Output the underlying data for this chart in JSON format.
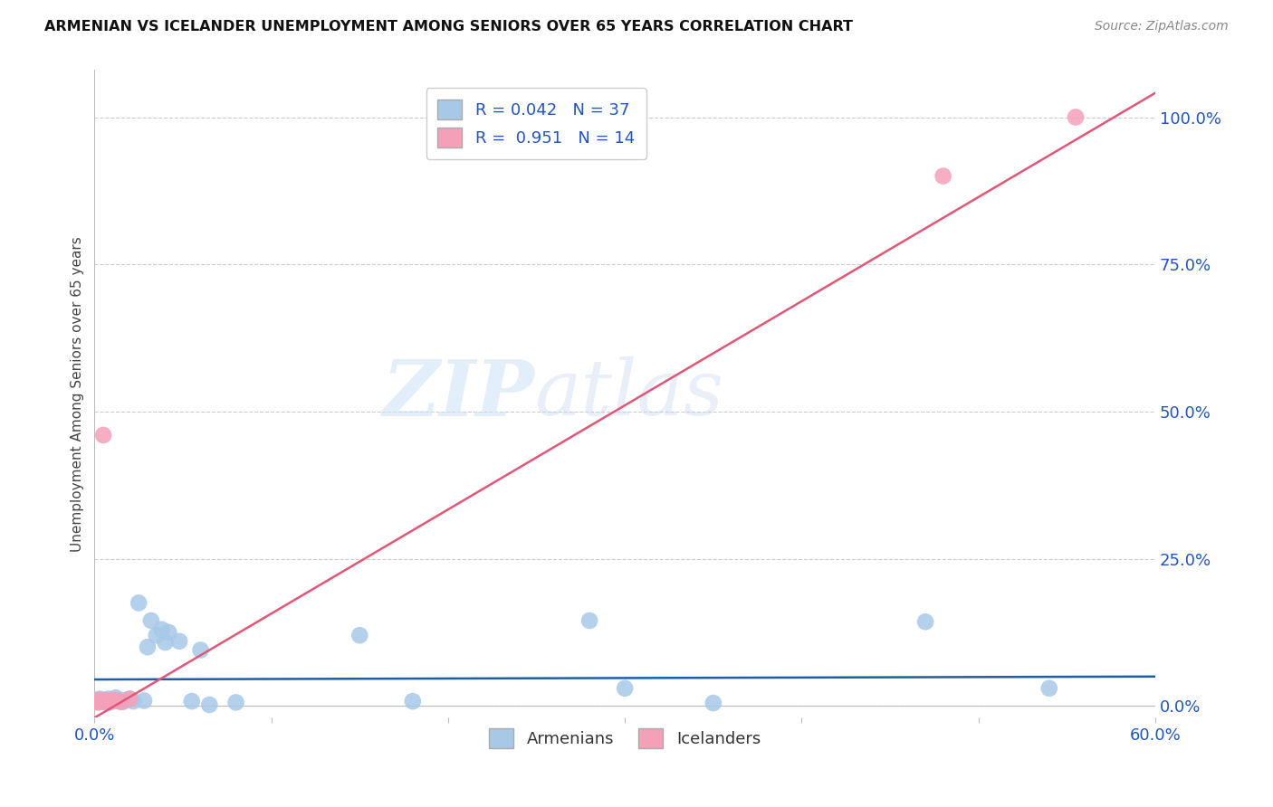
{
  "title": "ARMENIAN VS ICELANDER UNEMPLOYMENT AMONG SENIORS OVER 65 YEARS CORRELATION CHART",
  "source": "Source: ZipAtlas.com",
  "ylabel": "Unemployment Among Seniors over 65 years",
  "xlim": [
    0.0,
    0.6
  ],
  "ylim": [
    -0.02,
    1.08
  ],
  "right_yticks": [
    0.0,
    0.25,
    0.5,
    0.75,
    1.0
  ],
  "right_yticklabels": [
    "0.0%",
    "25.0%",
    "50.0%",
    "75.0%",
    "100.0%"
  ],
  "xticks": [
    0.0,
    0.1,
    0.2,
    0.3,
    0.4,
    0.5,
    0.6
  ],
  "xticklabels": [
    "0.0%",
    "",
    "",
    "",
    "",
    "",
    "60.0%"
  ],
  "armenian_color": "#a8c8e8",
  "icelander_color": "#f4a0b8",
  "armenian_line_color": "#1a5fa8",
  "icelander_line_color": "#e05878",
  "legend_R_armenian": "0.042",
  "legend_N_armenian": "37",
  "legend_R_icelander": "0.951",
  "legend_N_icelander": "14",
  "watermark_zip": "ZIP",
  "watermark_atlas": "atlas",
  "background_color": "#ffffff",
  "grid_color": "#cccccc",
  "title_fontsize": 11.5,
  "armenian_x": [
    0.001,
    0.002,
    0.003,
    0.004,
    0.005,
    0.006,
    0.007,
    0.008,
    0.009,
    0.01,
    0.012,
    0.013,
    0.015,
    0.016,
    0.018,
    0.02,
    0.022,
    0.025,
    0.028,
    0.03,
    0.032,
    0.035,
    0.038,
    0.04,
    0.042,
    0.048,
    0.055,
    0.06,
    0.065,
    0.08,
    0.15,
    0.18,
    0.28,
    0.3,
    0.35,
    0.47,
    0.54
  ],
  "armenian_y": [
    0.01,
    0.008,
    0.012,
    0.009,
    0.007,
    0.01,
    0.006,
    0.012,
    0.01,
    0.008,
    0.014,
    0.011,
    0.009,
    0.007,
    0.01,
    0.012,
    0.008,
    0.175,
    0.009,
    0.1,
    0.145,
    0.12,
    0.13,
    0.108,
    0.125,
    0.11,
    0.008,
    0.095,
    0.002,
    0.006,
    0.12,
    0.008,
    0.145,
    0.03,
    0.005,
    0.143,
    0.03
  ],
  "icelander_x": [
    0.001,
    0.002,
    0.003,
    0.004,
    0.005,
    0.006,
    0.007,
    0.008,
    0.01,
    0.012,
    0.015,
    0.02,
    0.48,
    0.555
  ],
  "icelander_y": [
    0.008,
    0.006,
    0.01,
    0.007,
    0.46,
    0.009,
    0.007,
    0.006,
    0.01,
    0.009,
    0.007,
    0.012,
    0.9,
    1.0
  ],
  "armenian_trend": [
    0.0,
    0.6
  ],
  "armenian_trend_y": [
    0.045,
    0.05
  ],
  "icelander_trend": [
    0.0,
    0.605
  ],
  "icelander_trend_y": [
    -0.02,
    1.05
  ]
}
